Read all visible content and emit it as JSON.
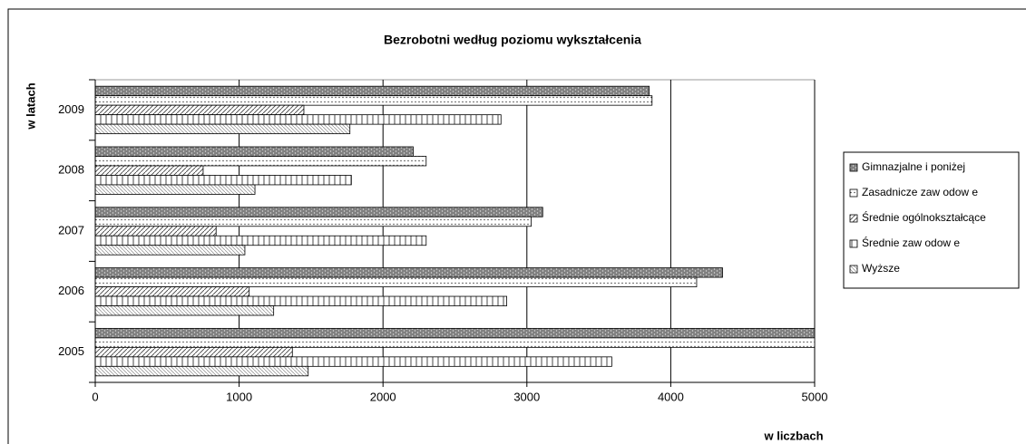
{
  "chart_data": {
    "type": "barh",
    "title": "Bezrobotni według poziomu wykształcenia",
    "y_label": "w latach",
    "x_label": "w liczbach",
    "categories": [
      "2005",
      "2006",
      "2007",
      "2008",
      "2009"
    ],
    "series": [
      {
        "name": "Gimnazjalne i poniżej",
        "color": "#808080",
        "pattern": "dots-dark",
        "values": [
          5000,
          4360,
          3110,
          2210,
          3850
        ]
      },
      {
        "name": "Zasadnicze zaw odow e",
        "color": "#ffffff",
        "pattern": "dots-light",
        "values": [
          5000,
          4180,
          3030,
          2300,
          3870
        ]
      },
      {
        "name": "Średnie ogólnokształcące",
        "color": "#ffffff",
        "pattern": "diagonal",
        "values": [
          1370,
          1070,
          840,
          750,
          1450
        ]
      },
      {
        "name": "Średnie zaw odow e",
        "color": "#ffffff",
        "pattern": "vertical",
        "values": [
          3590,
          2860,
          2300,
          1780,
          2820
        ]
      },
      {
        "name": "Wyższe",
        "color": "#ffffff",
        "pattern": "fine-diagonal",
        "values": [
          1480,
          1240,
          1040,
          1110,
          1770
        ]
      }
    ],
    "xlim": [
      0,
      5000
    ],
    "xticks": [
      0,
      1000,
      2000,
      3000,
      4000,
      5000
    ],
    "grid": true,
    "legend": "right"
  }
}
